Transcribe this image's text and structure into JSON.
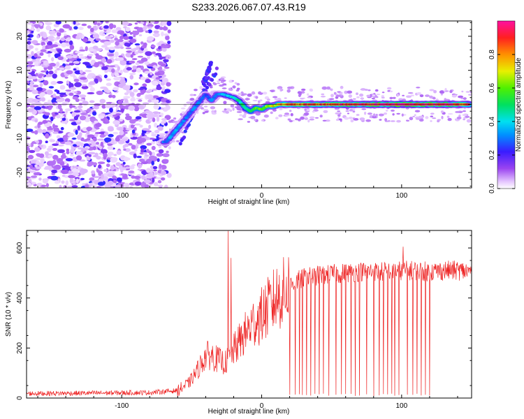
{
  "chart_data": [
    {
      "type": "heatmap",
      "title": "S233.2026.067.07.43.R19",
      "xlabel": "Height of straight line (km)",
      "ylabel": "Frequency (Hz)",
      "xlim": [
        -168,
        150
      ],
      "ylim": [
        -24.5,
        24.5
      ],
      "xticks": [
        -100,
        0,
        100
      ],
      "yticks": [
        -20,
        -10,
        0,
        10,
        20
      ],
      "colorbar": {
        "label": "Normalized spectral amplitude",
        "range": [
          0,
          1
        ],
        "ticks": [
          "0.0",
          "0.2",
          "0.4",
          "0.6",
          "0.8"
        ]
      },
      "ridge": {
        "x": [
          -68,
          -62,
          -56,
          -50,
          -44,
          -40,
          -36,
          -32,
          -28,
          -24,
          -20,
          -16,
          -12,
          -8,
          -4,
          0,
          4,
          8,
          12,
          20,
          40,
          60,
          80,
          100,
          120,
          140,
          148
        ],
        "frequency": [
          -11,
          -8,
          -5,
          -2,
          1,
          3,
          1,
          3,
          3,
          2.5,
          2,
          1,
          -1,
          -2,
          -1,
          -1.5,
          -0.5,
          -0.5,
          0,
          0,
          0,
          0,
          0,
          0,
          0,
          0,
          0
        ],
        "amplitude": [
          0.3,
          0.35,
          0.3,
          0.3,
          0.3,
          0.25,
          0.3,
          0.3,
          0.35,
          0.4,
          0.4,
          0.45,
          0.5,
          0.5,
          0.55,
          0.6,
          0.65,
          0.7,
          0.75,
          0.8,
          0.85,
          0.9,
          0.95,
          1.0,
          0.95,
          0.9,
          0.85
        ]
      }
    },
    {
      "type": "line",
      "title": "",
      "xlabel": "Height of straight line (km)",
      "ylabel": "SNR (10 * v/v)",
      "xlim": [
        -168,
        150
      ],
      "ylim": [
        0,
        670
      ],
      "xticks": [
        -100,
        0,
        100
      ],
      "yticks": [
        0,
        200,
        400,
        600
      ],
      "color": "#ee2222",
      "envelope": {
        "x": [
          -168,
          -120,
          -80,
          -60,
          -52,
          -46,
          -40,
          -36,
          -30,
          -26,
          -20,
          -14,
          -10,
          -6,
          0,
          6,
          12,
          16,
          20,
          26,
          30,
          40,
          50,
          60,
          70,
          80,
          90,
          100,
          110,
          120,
          130,
          140,
          150
        ],
        "snr": [
          18,
          20,
          22,
          30,
          60,
          110,
          170,
          170,
          150,
          140,
          190,
          240,
          270,
          300,
          330,
          370,
          410,
          420,
          450,
          470,
          480,
          490,
          495,
          500,
          505,
          505,
          505,
          510,
          510,
          505,
          510,
          510,
          505
        ]
      },
      "spikes": [
        {
          "x": -24,
          "snr": 668
        },
        {
          "x": -22,
          "snr": 560
        },
        {
          "x": 101,
          "snr": 605
        }
      ],
      "dropouts_x": [
        20,
        24,
        27,
        29,
        32,
        35,
        38,
        41,
        44,
        48,
        53,
        57,
        60,
        64,
        67,
        70,
        75,
        80,
        84,
        87,
        90,
        93,
        95,
        98,
        104,
        108,
        111,
        114,
        117,
        120
      ]
    }
  ]
}
